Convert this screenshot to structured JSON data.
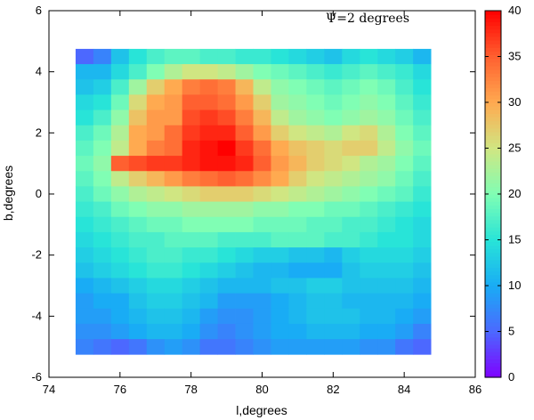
{
  "chart_data": {
    "type": "heatmap",
    "title": "",
    "annotation": "Ψ=2 degrees",
    "xlabel": "l,degrees",
    "ylabel": "b,degrees",
    "xlim": [
      74,
      86
    ],
    "ylim": [
      -6,
      6
    ],
    "x_ticks": [
      74,
      76,
      78,
      80,
      82,
      84,
      86
    ],
    "y_ticks": [
      -6,
      -4,
      -2,
      0,
      2,
      4,
      6
    ],
    "colorbar": {
      "min": 0,
      "max": 40,
      "ticks": [
        0,
        5,
        10,
        15,
        20,
        25,
        30,
        35,
        40
      ]
    },
    "grid": false,
    "x_centers": [
      75,
      75.5,
      76,
      76.5,
      77,
      77.5,
      78,
      78.5,
      79,
      79.5,
      80,
      80.5,
      81,
      81.5,
      82,
      82.5,
      83,
      83.5,
      84,
      84.5
    ],
    "y_centers": [
      4.5,
      4,
      3.5,
      3,
      2.5,
      2,
      1.5,
      1,
      0.5,
      0,
      -0.5,
      -1,
      -1.5,
      -2,
      -2.5,
      -3,
      -3.5,
      -4,
      -4.5,
      -5
    ],
    "values": [
      [
        5,
        7,
        12,
        15,
        17,
        18,
        18,
        17,
        17,
        16,
        16,
        15,
        14,
        13,
        12,
        14,
        15,
        14,
        13,
        11
      ],
      [
        11,
        11,
        14,
        17,
        20,
        23,
        25,
        25,
        24,
        22,
        20,
        19,
        18,
        17,
        16,
        17,
        18,
        17,
        16,
        14
      ],
      [
        12,
        13,
        17,
        22,
        27,
        30,
        33,
        34,
        33,
        29,
        24,
        21,
        20,
        19,
        18,
        19,
        20,
        19,
        17,
        15
      ],
      [
        14,
        15,
        19,
        26,
        30,
        31,
        35,
        35,
        34,
        31,
        27,
        22,
        21,
        20,
        19,
        20,
        21,
        20,
        18,
        16
      ],
      [
        15,
        17,
        21,
        28,
        31,
        31,
        36,
        37,
        36,
        33,
        29,
        24,
        22,
        21,
        20,
        21,
        22,
        21,
        19,
        17
      ],
      [
        17,
        19,
        23,
        30,
        31,
        34,
        37,
        38,
        38,
        35,
        31,
        27,
        25,
        24,
        23,
        25,
        26,
        23,
        20,
        18
      ],
      [
        18,
        20,
        24,
        30,
        33,
        34,
        38,
        39,
        40,
        37,
        34,
        30,
        28,
        27,
        26,
        27,
        27,
        24,
        21,
        19
      ],
      [
        19,
        21,
        35,
        36,
        37,
        37,
        38,
        39,
        39,
        38,
        35,
        31,
        29,
        27,
        26,
        25,
        23,
        22,
        20,
        18
      ],
      [
        18,
        20,
        24,
        27,
        29,
        31,
        33,
        34,
        35,
        34,
        32,
        30,
        27,
        25,
        24,
        23,
        22,
        21,
        19,
        17
      ],
      [
        17,
        19,
        21,
        23,
        24,
        25,
        26,
        27,
        27,
        27,
        26,
        25,
        24,
        23,
        22,
        21,
        20,
        19,
        18,
        16
      ],
      [
        16,
        17,
        19,
        20,
        21,
        21,
        22,
        22,
        22,
        22,
        21,
        21,
        20,
        20,
        19,
        19,
        18,
        17,
        16,
        15
      ],
      [
        15,
        16,
        17,
        18,
        19,
        19,
        20,
        20,
        20,
        20,
        19,
        19,
        19,
        18,
        18,
        17,
        17,
        16,
        15,
        14
      ],
      [
        14,
        15,
        16,
        17,
        17,
        18,
        18,
        18,
        17,
        17,
        17,
        18,
        18,
        18,
        17,
        17,
        16,
        15,
        15,
        14
      ],
      [
        13,
        14,
        15,
        16,
        17,
        17,
        16,
        16,
        15,
        14,
        13,
        13,
        12,
        12,
        11,
        13,
        14,
        14,
        14,
        13
      ],
      [
        12,
        13,
        14,
        15,
        16,
        16,
        15,
        14,
        13,
        12,
        11,
        11,
        10,
        10,
        10,
        12,
        13,
        13,
        13,
        12
      ],
      [
        10,
        11,
        12,
        13,
        14,
        14,
        13,
        12,
        11,
        11,
        11,
        12,
        12,
        13,
        13,
        12,
        12,
        12,
        12,
        11
      ],
      [
        9,
        10,
        10,
        12,
        13,
        13,
        12,
        11,
        9,
        9,
        9,
        10,
        11,
        12,
        12,
        11,
        11,
        11,
        11,
        10
      ],
      [
        9,
        9,
        10,
        11,
        12,
        12,
        11,
        9,
        8,
        8,
        9,
        10,
        11,
        12,
        12,
        12,
        11,
        11,
        10,
        9
      ],
      [
        8,
        8,
        9,
        10,
        11,
        11,
        10,
        8,
        7,
        8,
        9,
        10,
        10,
        11,
        11,
        11,
        10,
        10,
        9,
        7
      ],
      [
        7,
        6,
        5,
        6,
        8,
        9,
        8,
        6,
        6,
        7,
        8,
        9,
        9,
        9,
        9,
        9,
        8,
        8,
        6,
        5
      ]
    ]
  }
}
